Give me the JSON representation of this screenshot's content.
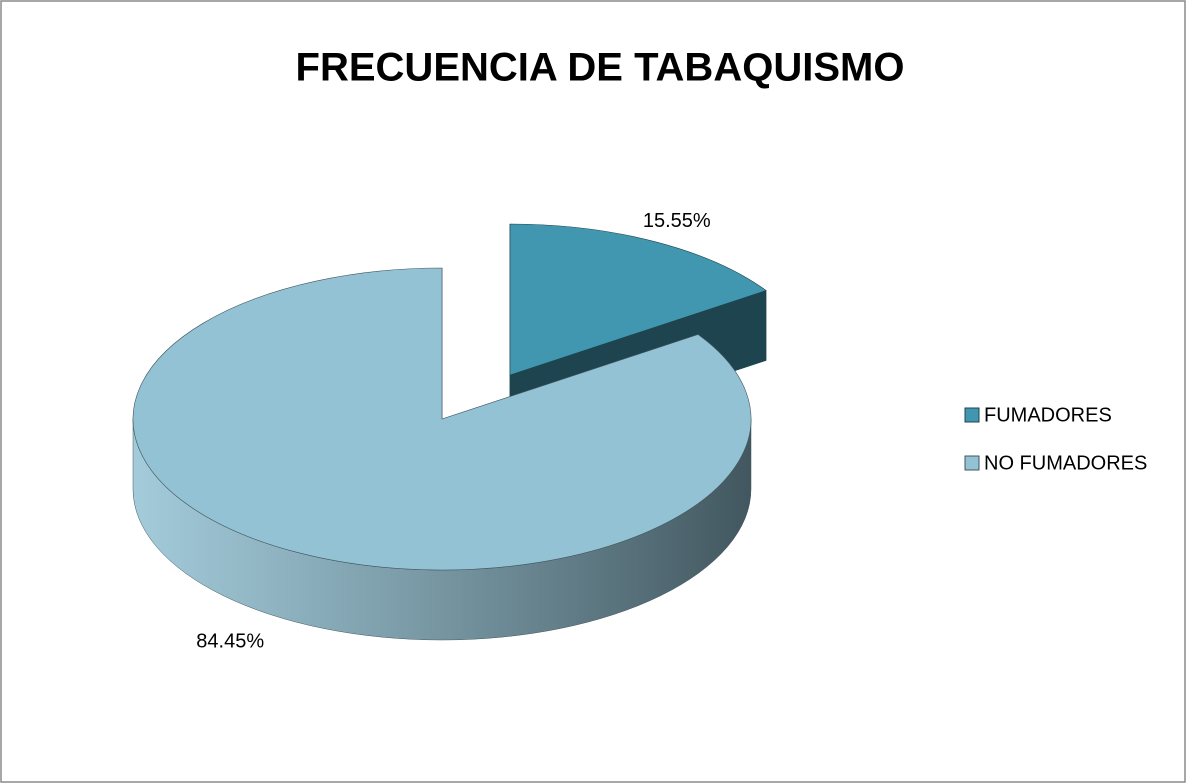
{
  "chart_data": {
    "type": "pie3d",
    "title": "FRECUENCIA DE TABAQUISMO",
    "categories": [
      "FUMADORES",
      "NO FUMADORES"
    ],
    "values": [
      15.55,
      84.45
    ],
    "value_labels": [
      "15.55%",
      "84.45%"
    ],
    "colors": [
      "#4197b0",
      "#93c2d4"
    ],
    "legend": "right"
  }
}
